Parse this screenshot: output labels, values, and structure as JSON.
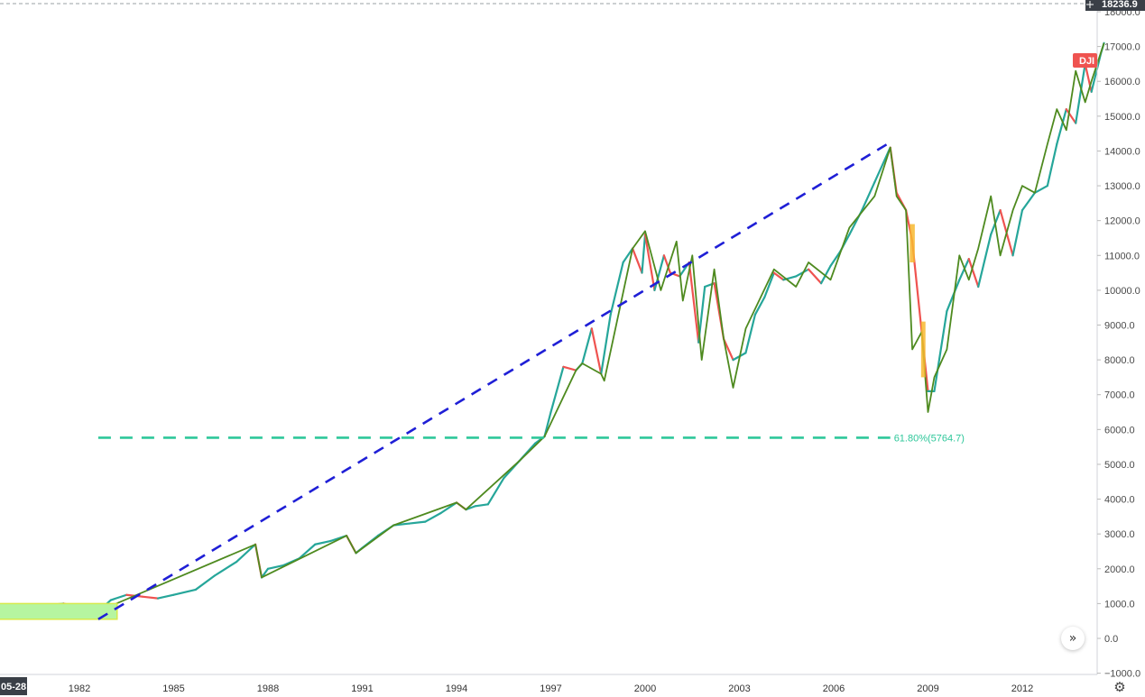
{
  "chart_data": {
    "type": "line",
    "symbol": "DJI",
    "title": "",
    "xlabel": "",
    "ylabel": "",
    "x_tick_labels": [
      "05-28",
      "1982",
      "1985",
      "1988",
      "1991",
      "1994",
      "1997",
      "2000",
      "2003",
      "2006",
      "2009",
      "2012"
    ],
    "x_tick_years": [
      1979.3,
      1982,
      1985,
      1988,
      1991,
      1994,
      1997,
      2000,
      2003,
      2006,
      2009,
      2012
    ],
    "xlim": [
      1979.3,
      2014.6
    ],
    "ylim": [
      -1000,
      18200
    ],
    "y_tick_values": [
      -1000,
      0,
      1000,
      2000,
      3000,
      4000,
      5000,
      6000,
      7000,
      8000,
      9000,
      10000,
      11000,
      12000,
      13000,
      14000,
      15000,
      16000,
      17000,
      18000
    ],
    "y_tick_labels": [
      "−1000.0",
      "0.0",
      "1000.0",
      "2000.0",
      "3000.0",
      "4000.0",
      "5000.0",
      "6000.0",
      "7000.0",
      "8000.0",
      "9000.0",
      "10000.0",
      "11000.0",
      "12000.0",
      "13000.0",
      "14000.0",
      "15000.0",
      "16000.0",
      "17000.0",
      "18000.0"
    ],
    "crosshair_price": "18236.9",
    "price_series": {
      "x": [
        1979.3,
        1980.0,
        1980.5,
        1981.0,
        1981.5,
        1982.0,
        1982.6,
        1983.0,
        1983.5,
        1984.0,
        1984.5,
        1985.0,
        1985.7,
        1986.3,
        1987.0,
        1987.6,
        1987.8,
        1988.0,
        1988.5,
        1989.0,
        1989.5,
        1990.0,
        1990.5,
        1990.8,
        1991.0,
        1991.5,
        1992.0,
        1992.5,
        1993.0,
        1993.5,
        1994.0,
        1994.3,
        1994.6,
        1995.0,
        1995.5,
        1996.0,
        1996.5,
        1996.8,
        1997.0,
        1997.4,
        1997.8,
        1998.0,
        1998.3,
        1998.6,
        1998.9,
        1999.3,
        1999.6,
        1999.9,
        2000.0,
        2000.3,
        2000.6,
        2000.8,
        2001.1,
        2001.4,
        2001.7,
        2001.9,
        2002.2,
        2002.5,
        2002.8,
        2003.2,
        2003.5,
        2003.8,
        2004.1,
        2004.4,
        2004.8,
        2005.2,
        2005.6,
        2005.9,
        2006.2,
        2006.5,
        2006.9,
        2007.3,
        2007.8,
        2008.0,
        2008.3,
        2008.5,
        2008.8,
        2009.0,
        2009.2,
        2009.6,
        2010.0,
        2010.3,
        2010.6,
        2011.0,
        2011.3,
        2011.7,
        2012.0,
        2012.4,
        2012.8,
        2013.1,
        2013.4,
        2013.7,
        2014.0,
        2014.2,
        2014.5,
        2014.6
      ],
      "y": [
        850,
        900,
        800,
        950,
        1000,
        900,
        780,
        1100,
        1250,
        1200,
        1150,
        1250,
        1400,
        1800,
        2200,
        2700,
        1750,
        2000,
        2100,
        2300,
        2700,
        2800,
        2950,
        2450,
        2600,
        2950,
        3250,
        3300,
        3350,
        3600,
        3900,
        3700,
        3800,
        3850,
        4600,
        5100,
        5600,
        5800,
        6500,
        7800,
        7700,
        7900,
        8900,
        7600,
        9300,
        10800,
        11200,
        10500,
        11600,
        10000,
        11000,
        10500,
        10400,
        10800,
        8500,
        10100,
        10200,
        8600,
        8000,
        8200,
        9300,
        9800,
        10500,
        10300,
        10400,
        10600,
        10200,
        10700,
        11100,
        11600,
        12300,
        13100,
        14100,
        12800,
        12300,
        11400,
        8800,
        7100,
        7100,
        9400,
        10300,
        10900,
        10100,
        11600,
        12300,
        11000,
        12300,
        12800,
        13000,
        14200,
        15200,
        14800,
        16500,
        15700,
        16800,
        17100
      ],
      "up_color": "#26a69a",
      "down_color": "#ef5350"
    },
    "zigzag": {
      "x": [
        1982.6,
        1987.6,
        1987.8,
        1990.5,
        1990.8,
        1992.0,
        1994.0,
        1994.3,
        1996.0,
        1996.8,
        1997.8,
        1998.0,
        1998.6,
        1998.7,
        1999.6,
        2000.0,
        2000.5,
        2001.0,
        2001.2,
        2001.5,
        2001.8,
        2002.2,
        2002.5,
        2002.8,
        2003.2,
        2004.1,
        2004.8,
        2005.2,
        2005.9,
        2006.5,
        2007.3,
        2007.8,
        2008.0,
        2008.3,
        2008.5,
        2008.8,
        2009.0,
        2009.2,
        2009.6,
        2010.0,
        2010.3,
        2010.6,
        2011.0,
        2011.3,
        2011.7,
        2012.0,
        2012.4,
        2012.8,
        2013.1,
        2013.4,
        2013.7,
        2014.0,
        2014.2,
        2014.6
      ],
      "y": [
        780,
        2700,
        1750,
        2950,
        2450,
        3250,
        3900,
        3700,
        5100,
        5800,
        7700,
        7900,
        7600,
        7400,
        11200,
        11700,
        10000,
        11400,
        9700,
        11000,
        8000,
        10600,
        8600,
        7200,
        8900,
        10600,
        10100,
        10800,
        10300,
        11800,
        12700,
        14100,
        12700,
        12300,
        8300,
        8800,
        6500,
        7500,
        8300,
        11000,
        10300,
        11200,
        12700,
        11000,
        12300,
        13000,
        12800,
        14200,
        15200,
        14600,
        16300,
        15400,
        16000,
        17100
      ],
      "color": "#4e8a1f"
    },
    "annotations": {
      "trend_line": {
        "x": [
          1982.6,
          2007.8
        ],
        "y": [
          550,
          14250
        ],
        "color": "#1f1fd6",
        "style": "dashed"
      },
      "fib_level": {
        "x": [
          1982.6,
          2007.8
        ],
        "y": 5764.7,
        "label": "61.80%(5764.7)",
        "color": "#2ec79a",
        "style": "dashed"
      },
      "highlight_box": {
        "x": [
          1979.3,
          1983.2
        ],
        "y": [
          550,
          1000
        ],
        "color": "#b6f5a0"
      },
      "crisis_markers": [
        {
          "x": [
            2008.42,
            2008.58
          ],
          "y": [
            10800,
            11900
          ],
          "color": "#f7b830"
        },
        {
          "x": [
            2008.78,
            2008.92
          ],
          "y": [
            7500,
            9100
          ],
          "color": "#f7b830"
        }
      ]
    },
    "last_value_tag": {
      "text": "DJI",
      "y": 16600,
      "color": "#ef5350"
    },
    "grid": false,
    "legend": "none"
  },
  "controls": {
    "scroll_icon": "double-chevron-right-icon",
    "scroll_glyph": "»",
    "settings_icon": "gear-icon",
    "settings_glyph": "⚙"
  }
}
